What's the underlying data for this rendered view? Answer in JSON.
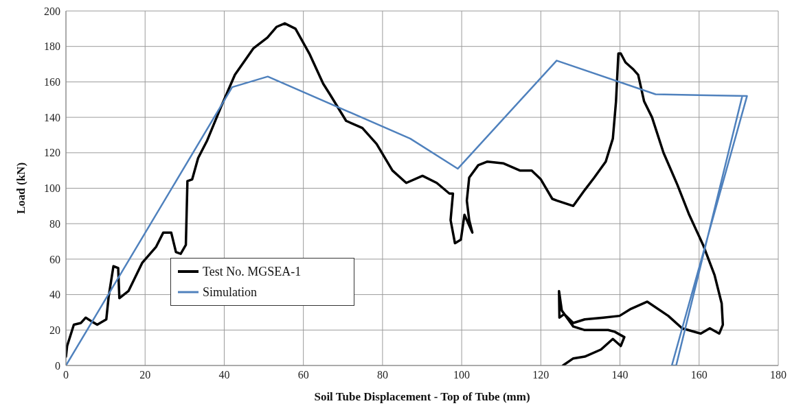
{
  "chart_data": {
    "type": "line",
    "xlabel": "Soil Tube Displacement - Top of Tube (mm)",
    "ylabel": "Load (kN)",
    "xlim": [
      0,
      180
    ],
    "xticks": [
      0,
      20,
      40,
      60,
      80,
      100,
      120,
      140,
      160,
      180
    ],
    "ylim": [
      0,
      200
    ],
    "yticks": [
      0,
      20,
      40,
      60,
      80,
      100,
      120,
      140,
      160,
      180,
      200
    ],
    "grid": true,
    "legend": "bottom left",
    "marker": "none",
    "line_style": "solid",
    "series": [
      {
        "name": "Test No. MGSEA-1",
        "color": "#000000",
        "x": [
          0,
          0.3,
          2,
          3.8,
          5,
          6.4,
          7.9,
          10.2,
          10.8,
          12,
          13.2,
          13.5,
          15.8,
          19.3,
          22.8,
          24.6,
          26.6,
          27.8,
          29,
          30.3,
          30.7,
          31.9,
          33.4,
          35.7,
          39.2,
          42.7,
          47.4,
          50.9,
          53.2,
          55.3,
          58,
          61.5,
          65,
          66.7,
          70.8,
          74.9,
          78.5,
          82.5,
          86,
          90.1,
          93.7,
          96.9,
          97.8,
          97.2,
          98.3,
          99.8,
          100.7,
          102.7,
          101.9,
          101.3,
          101.9,
          104.2,
          106.5,
          110.6,
          114.7,
          117.7,
          120,
          122.9,
          124.1,
          128.2,
          131.1,
          133.5,
          136.4,
          138.2,
          139,
          139.6,
          140.2,
          141.4,
          143.4,
          144.6,
          146.1,
          148.1,
          151,
          154.5,
          157.5,
          161,
          163.9,
          165.7,
          166,
          165.1,
          162.7,
          160.4,
          155.7,
          152.2,
          146.9,
          142.8,
          139.9,
          135.8,
          131.1,
          128.2,
          125.9,
          124.7,
          124.6,
          125.3,
          128.2,
          131.1,
          137,
          138.7,
          141.1,
          140.2,
          138.2,
          135.2,
          131.1,
          128.2,
          125.6
        ],
        "values": [
          5,
          11,
          23,
          24,
          27,
          25,
          23,
          26,
          39,
          56,
          55,
          38,
          42,
          58,
          67,
          75,
          75,
          64,
          63,
          68,
          104,
          105,
          117,
          127,
          146,
          164,
          179,
          185,
          191,
          193,
          190,
          176,
          159,
          153,
          138,
          134,
          125,
          110,
          103,
          107,
          103,
          97,
          97,
          82,
          69,
          71,
          85,
          75,
          82,
          93,
          106,
          113,
          115,
          114,
          110,
          110,
          105,
          94,
          93,
          90,
          99,
          106,
          115,
          128,
          149,
          176,
          176,
          171,
          167,
          164,
          149,
          140,
          120,
          102,
          85,
          68,
          51,
          35,
          23,
          18,
          21,
          18,
          21,
          28,
          36,
          32,
          28,
          27,
          26,
          24,
          29,
          27,
          42,
          31,
          22,
          20,
          20,
          19,
          16,
          11,
          15,
          9,
          5,
          4,
          0
        ]
      },
      {
        "name": "Simulation",
        "color": "#4f81bd",
        "x": [
          0,
          42,
          51,
          87,
          99,
          124,
          149,
          172.1,
          153.1,
          154.2,
          170.9
        ],
        "values": [
          0,
          157,
          163,
          128,
          111,
          172,
          153,
          152,
          0,
          0,
          152
        ]
      }
    ]
  }
}
